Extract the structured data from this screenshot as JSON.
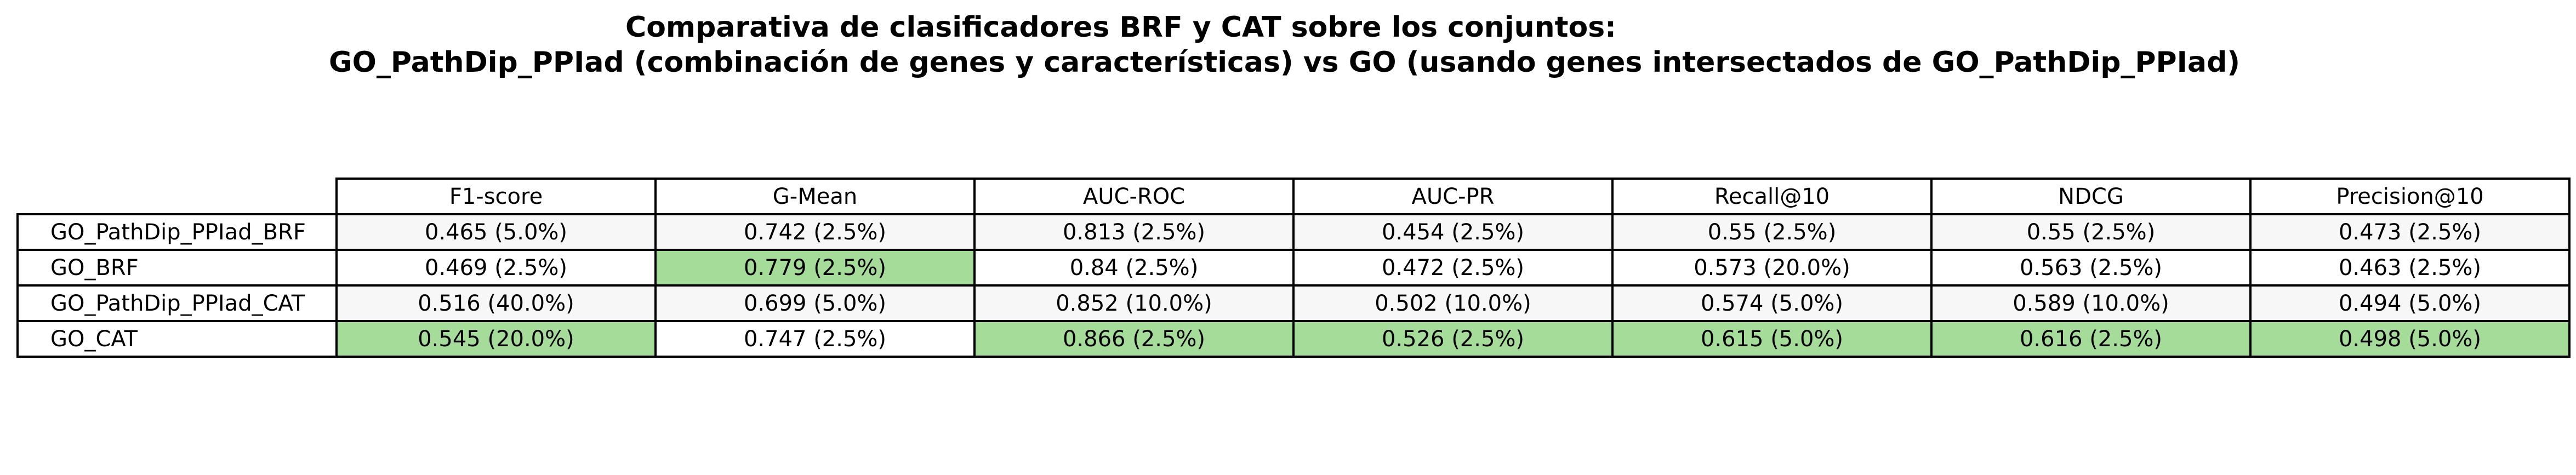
{
  "chart_data": {
    "type": "table",
    "title": "Comparativa de clasificadores BRF y CAT sobre los conjuntos:",
    "subtitle": "GO_PathDip_PPIad (combinación de genes y características) vs GO (usando genes intersectados de GO_PathDip_PPIad)",
    "columns": [
      "F1-score",
      "G-Mean",
      "AUC-ROC",
      "AUC-PR",
      "Recall@10",
      "NDCG",
      "Precision@10"
    ],
    "rows": [
      {
        "label": "GO_PathDip_PPIad_BRF",
        "cells": [
          "0.465 (5.0%)",
          "0.742 (2.5%)",
          "0.813 (2.5%)",
          "0.454 (2.5%)",
          "0.55 (2.5%)",
          "0.55 (2.5%)",
          "0.473 (2.5%)"
        ],
        "best": [
          false,
          false,
          false,
          false,
          false,
          false,
          false
        ]
      },
      {
        "label": "GO_BRF",
        "cells": [
          "0.469 (2.5%)",
          "0.779 (2.5%)",
          "0.84 (2.5%)",
          "0.472 (2.5%)",
          "0.573 (20.0%)",
          "0.563 (2.5%)",
          "0.463 (2.5%)"
        ],
        "best": [
          false,
          true,
          false,
          false,
          false,
          false,
          false
        ]
      },
      {
        "label": "GO_PathDip_PPIad_CAT",
        "cells": [
          "0.516 (40.0%)",
          "0.699 (5.0%)",
          "0.852 (10.0%)",
          "0.502 (10.0%)",
          "0.574 (5.0%)",
          "0.589 (10.0%)",
          "0.494 (5.0%)"
        ],
        "best": [
          false,
          false,
          false,
          false,
          false,
          false,
          false
        ]
      },
      {
        "label": "GO_CAT",
        "cells": [
          "0.545 (20.0%)",
          "0.747 (2.5%)",
          "0.866 (2.5%)",
          "0.526 (2.5%)",
          "0.615 (5.0%)",
          "0.616 (2.5%)",
          "0.498 (5.0%)"
        ],
        "best": [
          true,
          false,
          true,
          true,
          true,
          true,
          true
        ]
      }
    ],
    "colors": {
      "highlight": "#a5dc99",
      "row_alt": "#f7f7f7",
      "border": "#000000"
    }
  }
}
